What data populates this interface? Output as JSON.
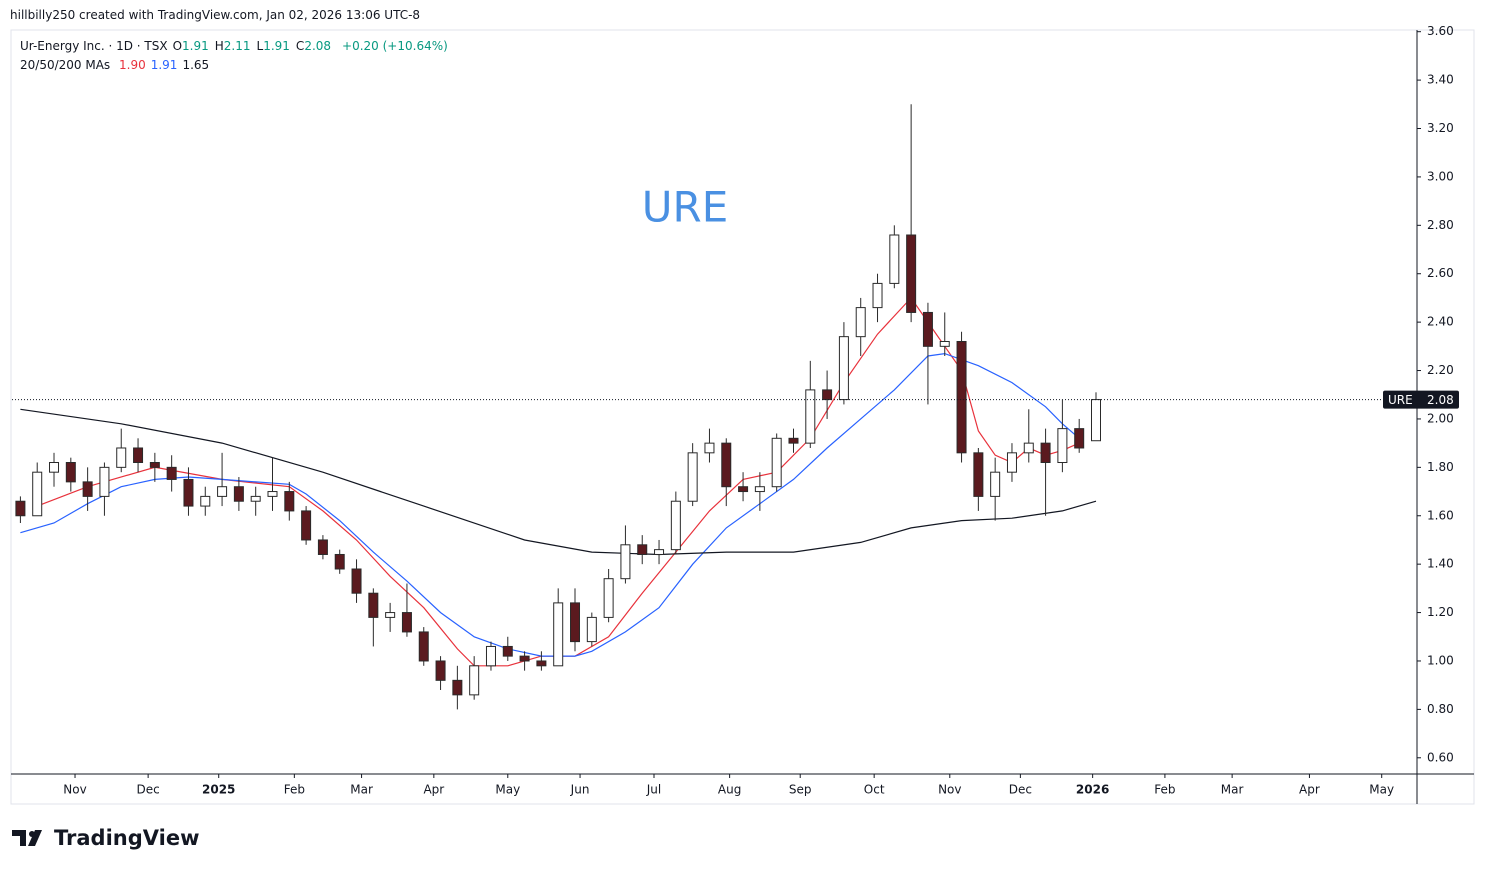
{
  "credit": "hillbilly250 created with TradingView.com, Jan 02, 2026 13:06 UTC-8",
  "brand": "TradingView",
  "chart_data": {
    "type": "candlestick",
    "symbol": "Ur-Energy Inc. · 1D · TSX",
    "ohlc_legend": [
      {
        "label": "O",
        "value": 1.91
      },
      {
        "label": "H",
        "value": 2.11
      },
      {
        "label": "L",
        "value": 1.91
      },
      {
        "label": "C",
        "value": 2.08
      }
    ],
    "change": "+0.20 (+10.64%)",
    "ma_legend": {
      "label": "20/50/200 MAs",
      "values": [
        {
          "value": 1.9,
          "label": "1.90"
        },
        1.91,
        1.65
      ]
    },
    "annotation": "URE",
    "last_price": {
      "label": "URE",
      "value": 2.08
    },
    "up_color": "#ffffff",
    "down_color": "#5b1a1f",
    "edge_color": "#2a2a2a",
    "ylim": [
      0.533,
      3.607
    ],
    "yticks": [
      {
        "value": 0.6,
        "label": "0.60"
      },
      {
        "value": 0.8,
        "label": "0.80"
      },
      {
        "value": 1.0,
        "label": "1.00"
      },
      {
        "value": 1.2,
        "label": "1.20"
      },
      {
        "value": 1.4,
        "label": "1.40"
      },
      {
        "value": 1.6,
        "label": "1.60"
      },
      {
        "value": 1.8,
        "label": "1.80"
      },
      {
        "value": 2.0,
        "label": "2.00"
      },
      {
        "value": 2.2,
        "label": "2.20"
      },
      {
        "value": 2.4,
        "label": "2.40"
      },
      {
        "value": 2.6,
        "label": "2.60"
      },
      {
        "value": 2.8,
        "label": "2.80"
      },
      {
        "value": 3.0,
        "label": "3.00"
      },
      {
        "value": 3.2,
        "label": "3.20"
      },
      {
        "value": 3.4,
        "label": "3.40"
      },
      {
        "value": 3.6,
        "label": "3.60"
      }
    ],
    "xlim": [
      -0.5,
      83.1
    ],
    "xticks": [
      {
        "value": 3.25,
        "label": "Nov"
      },
      {
        "value": 7.6,
        "label": "Dec"
      },
      {
        "value": 11.8,
        "label": "2025"
      },
      {
        "value": 16.3,
        "label": "Feb"
      },
      {
        "value": 20.3,
        "label": "Mar"
      },
      {
        "value": 24.6,
        "label": "Apr"
      },
      {
        "value": 29.0,
        "label": "May"
      },
      {
        "value": 33.3,
        "label": "Jun"
      },
      {
        "value": 37.7,
        "label": "Jul"
      },
      {
        "value": 42.2,
        "label": "Aug"
      },
      {
        "value": 46.4,
        "label": "Sep"
      },
      {
        "value": 50.8,
        "label": "Oct"
      },
      {
        "value": 55.3,
        "label": "Nov"
      },
      {
        "value": 59.5,
        "label": "Dec"
      },
      {
        "value": 63.8,
        "label": "2026"
      },
      {
        "value": 68.1,
        "label": "Feb"
      },
      {
        "value": 72.1,
        "label": "Mar"
      },
      {
        "value": 76.7,
        "label": "Apr"
      },
      {
        "value": 81.0,
        "label": "May"
      }
    ],
    "x": [
      0,
      1,
      2,
      3,
      4,
      5,
      6,
      7,
      8,
      9,
      10,
      11,
      12,
      13,
      14,
      15,
      16,
      17,
      18,
      19,
      20,
      21,
      22,
      23,
      24,
      25,
      26,
      27,
      28,
      29,
      30,
      31,
      32,
      33,
      34,
      35,
      36,
      37,
      38,
      39,
      40,
      41,
      42,
      43,
      44,
      45,
      46,
      47,
      48,
      49,
      50,
      51,
      52,
      53,
      54,
      55,
      56,
      57,
      58,
      59,
      60,
      61,
      62,
      63,
      64
    ],
    "open": [
      1.66,
      1.6,
      1.78,
      1.82,
      1.74,
      1.68,
      1.8,
      1.88,
      1.82,
      1.8,
      1.75,
      1.64,
      1.68,
      1.72,
      1.66,
      1.68,
      1.7,
      1.62,
      1.5,
      1.44,
      1.38,
      1.28,
      1.18,
      1.2,
      1.12,
      1.0,
      0.92,
      0.86,
      0.98,
      1.06,
      1.02,
      1.0,
      0.98,
      1.24,
      1.08,
      1.18,
      1.34,
      1.48,
      1.44,
      1.46,
      1.66,
      1.86,
      1.9,
      1.72,
      1.7,
      1.72,
      1.92,
      1.9,
      2.12,
      2.08,
      2.34,
      2.46,
      2.56,
      2.76,
      2.44,
      2.3,
      2.32,
      1.86,
      1.68,
      1.78,
      1.86,
      1.9,
      1.82,
      1.96,
      1.91
    ],
    "high": [
      1.68,
      1.82,
      1.86,
      1.84,
      1.8,
      1.82,
      1.96,
      1.92,
      1.86,
      1.85,
      1.8,
      1.72,
      1.86,
      1.76,
      1.72,
      1.84,
      1.74,
      1.64,
      1.52,
      1.46,
      1.42,
      1.3,
      1.24,
      1.32,
      1.14,
      1.02,
      0.98,
      1.02,
      1.08,
      1.1,
      1.04,
      1.04,
      1.3,
      1.3,
      1.2,
      1.38,
      1.56,
      1.52,
      1.5,
      1.7,
      1.9,
      1.96,
      1.92,
      1.78,
      1.78,
      1.94,
      1.96,
      2.24,
      2.2,
      2.4,
      2.5,
      2.6,
      2.8,
      3.3,
      2.48,
      2.44,
      2.36,
      1.88,
      1.84,
      1.9,
      2.04,
      1.96,
      2.08,
      2.0,
      2.11
    ],
    "low": [
      1.57,
      1.6,
      1.72,
      1.7,
      1.62,
      1.6,
      1.78,
      1.78,
      1.74,
      1.7,
      1.6,
      1.6,
      1.64,
      1.62,
      1.6,
      1.62,
      1.58,
      1.48,
      1.42,
      1.36,
      1.24,
      1.06,
      1.12,
      1.1,
      0.98,
      0.88,
      0.8,
      0.84,
      0.96,
      1.0,
      0.96,
      0.96,
      0.98,
      1.04,
      1.06,
      1.16,
      1.32,
      1.4,
      1.4,
      1.44,
      1.64,
      1.82,
      1.64,
      1.66,
      1.62,
      1.7,
      1.86,
      1.88,
      2.0,
      2.06,
      2.26,
      2.4,
      2.54,
      2.4,
      2.06,
      2.26,
      1.82,
      1.62,
      1.58,
      1.74,
      1.82,
      1.6,
      1.78,
      1.86,
      1.91
    ],
    "close": [
      1.6,
      1.78,
      1.82,
      1.74,
      1.68,
      1.8,
      1.88,
      1.82,
      1.8,
      1.75,
      1.64,
      1.68,
      1.72,
      1.66,
      1.68,
      1.7,
      1.62,
      1.5,
      1.44,
      1.38,
      1.28,
      1.18,
      1.2,
      1.12,
      1.0,
      0.92,
      0.86,
      0.98,
      1.06,
      1.02,
      1.0,
      0.98,
      1.24,
      1.08,
      1.18,
      1.34,
      1.48,
      1.44,
      1.46,
      1.66,
      1.86,
      1.9,
      1.72,
      1.7,
      1.72,
      1.92,
      1.9,
      2.12,
      2.08,
      2.34,
      2.46,
      2.56,
      2.76,
      2.44,
      2.3,
      2.32,
      1.86,
      1.68,
      1.78,
      1.86,
      1.9,
      1.82,
      1.96,
      1.88,
      2.08
    ],
    "moving_averages": [
      {
        "color": "#e8323c",
        "x": [
          1,
          4,
          8,
          12,
          16,
          18,
          20,
          22,
          24,
          26,
          27,
          29,
          31,
          33,
          35,
          37,
          39,
          41,
          43,
          45,
          47,
          49,
          51,
          53,
          54,
          55,
          56,
          57,
          58,
          59,
          60,
          61,
          62,
          63
        ],
        "values": [
          1.64,
          1.72,
          1.8,
          1.75,
          1.72,
          1.62,
          1.5,
          1.35,
          1.22,
          1.05,
          0.98,
          0.98,
          1.02,
          1.02,
          1.1,
          1.28,
          1.45,
          1.62,
          1.75,
          1.78,
          1.92,
          2.15,
          2.35,
          2.5,
          2.4,
          2.3,
          2.2,
          1.95,
          1.85,
          1.82,
          1.88,
          1.85,
          1.87,
          1.9
        ]
      },
      {
        "color": "#2962ff",
        "x": [
          0,
          2,
          4,
          6,
          8,
          10,
          12,
          14,
          16,
          17,
          19,
          21,
          23,
          25,
          27,
          29,
          31,
          33,
          34,
          36,
          38,
          40,
          42,
          44,
          46,
          48,
          50,
          52,
          54,
          55,
          57,
          59,
          61,
          62,
          63
        ],
        "values": [
          1.53,
          1.57,
          1.65,
          1.72,
          1.75,
          1.76,
          1.75,
          1.74,
          1.73,
          1.69,
          1.58,
          1.45,
          1.33,
          1.2,
          1.1,
          1.05,
          1.02,
          1.02,
          1.04,
          1.12,
          1.22,
          1.4,
          1.55,
          1.65,
          1.75,
          1.88,
          2.0,
          2.12,
          2.26,
          2.27,
          2.22,
          2.15,
          2.05,
          1.98,
          1.92
        ]
      },
      {
        "color": "#131722",
        "x": [
          0,
          6,
          12,
          18,
          24,
          30,
          34,
          38,
          42,
          46,
          50,
          53,
          56,
          59,
          62,
          64
        ],
        "values": [
          2.04,
          1.98,
          1.9,
          1.78,
          1.64,
          1.5,
          1.45,
          1.44,
          1.45,
          1.45,
          1.49,
          1.55,
          1.58,
          1.59,
          1.62,
          1.66
        ]
      }
    ]
  }
}
